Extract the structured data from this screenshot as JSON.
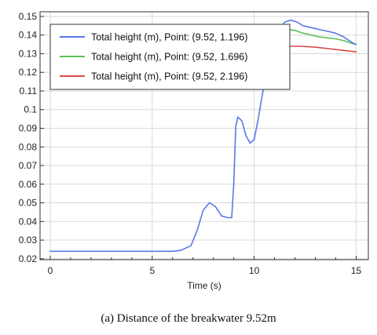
{
  "chart_data": {
    "type": "line",
    "xlabel": "Time (s)",
    "ylabel": "",
    "xlim": [
      -0.5,
      15.6
    ],
    "ylim": [
      0.0195,
      0.1525
    ],
    "x_ticks": [
      0,
      5,
      10,
      15
    ],
    "x_tick_labels": [
      "0",
      "5",
      "10",
      "15"
    ],
    "y_ticks": [
      0.02,
      0.03,
      0.04,
      0.05,
      0.06,
      0.07,
      0.08,
      0.09,
      0.1,
      0.11,
      0.12,
      0.13,
      0.14,
      0.15
    ],
    "y_tick_labels": [
      "0.02",
      "0.03",
      "0.04",
      "0.05",
      "0.06",
      "0.07",
      "0.08",
      "0.09",
      "0.1",
      "0.11",
      "0.12",
      "0.13",
      "0.14",
      "0.15"
    ],
    "grid": true,
    "legend_position": "top-left",
    "series": [
      {
        "name": "Total height (m), Point: (9.52, 1.196)",
        "color": "#5a78e6",
        "x": [
          0,
          2,
          4,
          6,
          6.4,
          6.6,
          6.9,
          7.2,
          7.5,
          7.8,
          8.1,
          8.4,
          8.7,
          8.9,
          9.0,
          9.1,
          9.2,
          9.4,
          9.6,
          9.8,
          10.0,
          10.2,
          10.4,
          10.6,
          10.9,
          11.2,
          11.5,
          11.8,
          12.1,
          12.4,
          12.8,
          13.2,
          13.6,
          14.0,
          14.4,
          14.8,
          15.0
        ],
        "y": [
          0.024,
          0.024,
          0.024,
          0.024,
          0.0245,
          0.0255,
          0.027,
          0.035,
          0.046,
          0.05,
          0.048,
          0.043,
          0.042,
          0.042,
          0.06,
          0.091,
          0.096,
          0.094,
          0.086,
          0.082,
          0.084,
          0.095,
          0.108,
          0.12,
          0.133,
          0.142,
          0.147,
          0.148,
          0.147,
          0.145,
          0.144,
          0.143,
          0.142,
          0.141,
          0.139,
          0.136,
          0.135
        ]
      },
      {
        "name": "Total height (m), Point: (9.52, 1.696)",
        "color": "#5cc15c",
        "x": [
          11.3,
          11.6,
          12.0,
          12.4,
          12.8,
          13.2,
          13.6,
          14.0,
          14.4,
          14.8,
          15.0
        ],
        "y": [
          0.142,
          0.143,
          0.1425,
          0.141,
          0.14,
          0.139,
          0.1385,
          0.138,
          0.137,
          0.1355,
          0.135
        ]
      },
      {
        "name": "Total height (m), Point: (9.52, 2.196)",
        "color": "#d94a4a",
        "x": [
          11.0,
          11.4,
          11.8,
          12.2,
          12.6,
          13.0,
          13.4,
          13.8,
          14.2,
          14.6,
          15.0
        ],
        "y": [
          0.133,
          0.1335,
          0.134,
          0.134,
          0.1338,
          0.1335,
          0.133,
          0.1325,
          0.132,
          0.1315,
          0.131
        ]
      }
    ]
  },
  "caption": "(a) Distance of the breakwater 9.52m"
}
